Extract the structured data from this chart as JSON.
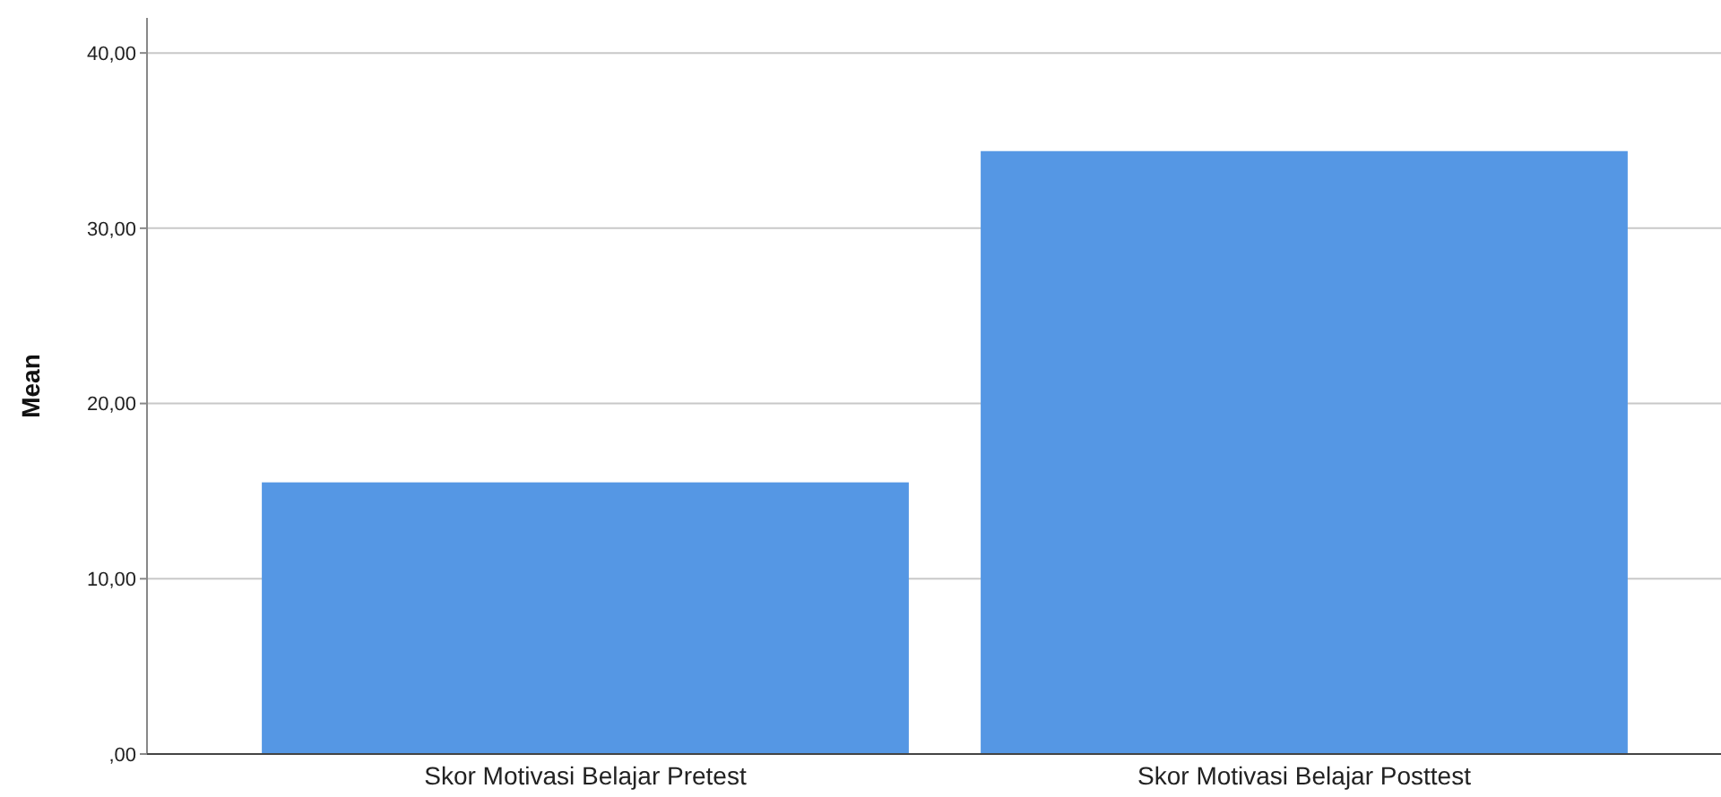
{
  "chart_data": {
    "type": "bar",
    "ylabel": "Mean",
    "categories": [
      "Skor Motivasi Belajar Pretest",
      "Skor Motivasi Belajar Posttest"
    ],
    "values": [
      15.5,
      34.4
    ],
    "color": "#5597e4",
    "ylim": [
      0,
      42
    ],
    "yticks": [
      {
        "value": 0,
        "label": ",00"
      },
      {
        "value": 10,
        "label": "10,00"
      },
      {
        "value": 20,
        "label": "20,00"
      },
      {
        "value": 30,
        "label": "30,00"
      },
      {
        "value": 40,
        "label": "40,00"
      }
    ],
    "grid": "y"
  }
}
